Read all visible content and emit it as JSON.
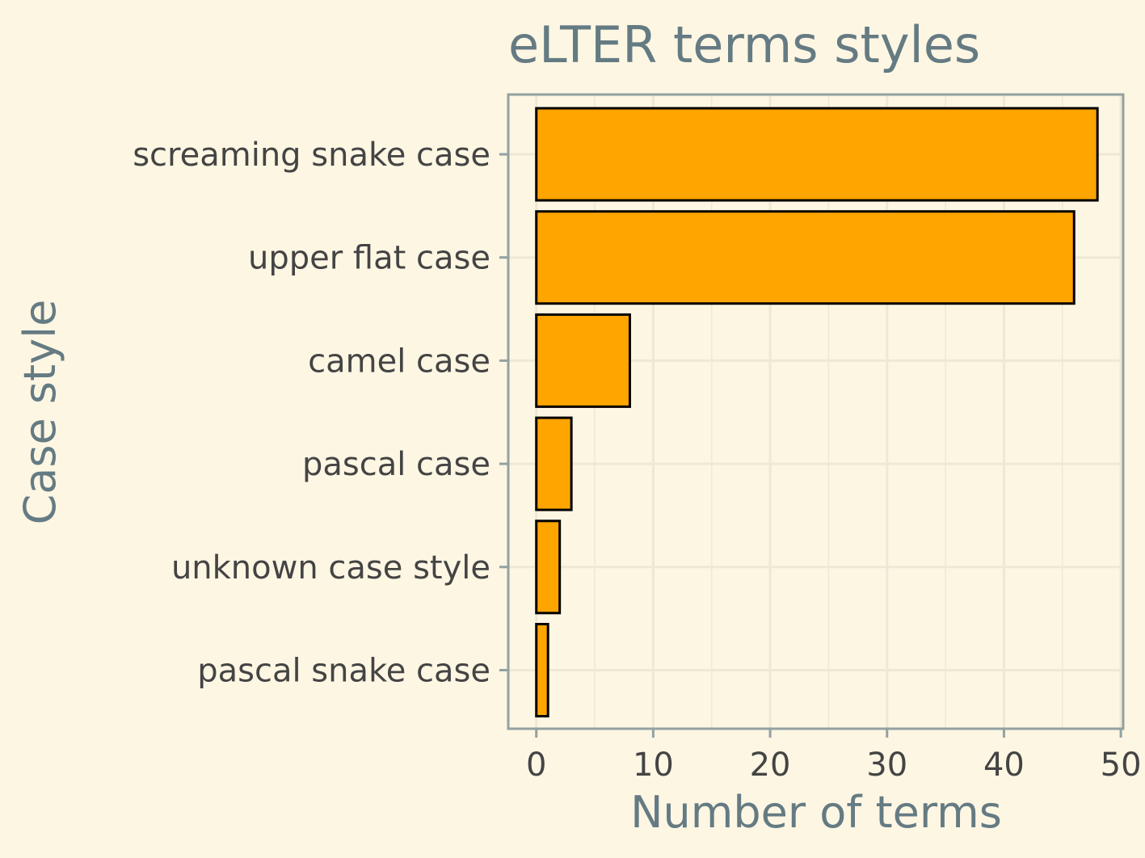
{
  "chart_data": {
    "type": "bar",
    "orientation": "horizontal",
    "title": "eLTER terms styles",
    "xlabel": "Number of terms",
    "ylabel": "Case style",
    "categories": [
      "screaming snake case",
      "upper flat case",
      "camel case",
      "pascal case",
      "unknown case style",
      "pascal snake case"
    ],
    "values": [
      48,
      46,
      8,
      3,
      2,
      1
    ],
    "xlim": [
      -2.4,
      50.2
    ],
    "xticks": [
      0,
      10,
      20,
      30,
      40,
      50
    ],
    "grid": true,
    "legend": "none",
    "colors": {
      "bar_fill": "#FFA500",
      "bar_outline": "#000000",
      "background": "#fdf6e3",
      "grid": "#eee8d5",
      "axis": "#93a1a1",
      "title_text": "#657b83",
      "tick_text": "#444444"
    }
  }
}
